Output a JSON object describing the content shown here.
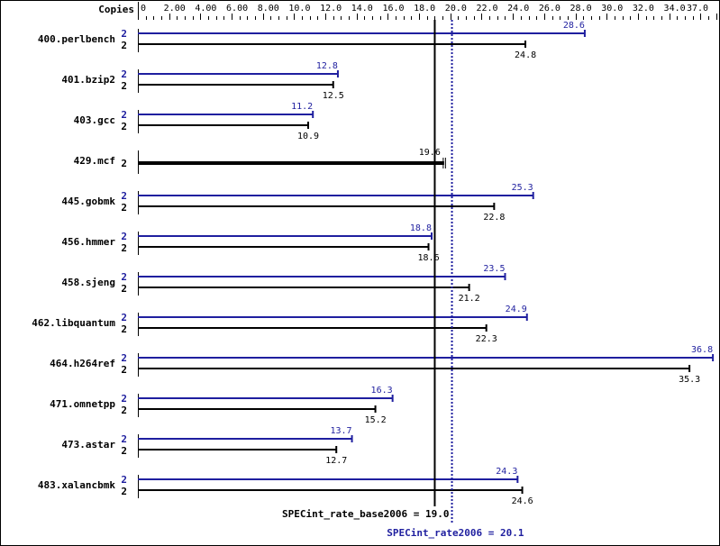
{
  "chart_data": {
    "type": "bar",
    "orientation": "horizontal",
    "title": "",
    "xlabel": "",
    "ylabel": "",
    "copies_header": "Copies",
    "xlim": [
      0,
      37.0
    ],
    "x_ticks": [
      "0",
      "2.00",
      "4.00",
      "6.00",
      "8.00",
      "10.0",
      "12.0",
      "14.0",
      "16.0",
      "18.0",
      "20.0",
      "22.0",
      "24.0",
      "26.0",
      "28.0",
      "30.0",
      "32.0",
      "34.0",
      "37.0"
    ],
    "categories": [
      "400.perlbench",
      "401.bzip2",
      "403.gcc",
      "429.mcf",
      "445.gobmk",
      "456.hmmer",
      "458.sjeng",
      "462.libquantum",
      "464.h264ref",
      "471.omnetpp",
      "473.astar",
      "483.xalancbmk"
    ],
    "series": [
      {
        "name": "SPECint_rate2006 (peak)",
        "color": "#1f1f9f",
        "copies": [
          2,
          2,
          2,
          null,
          2,
          2,
          2,
          2,
          2,
          2,
          2,
          2
        ],
        "values": [
          28.6,
          12.8,
          11.2,
          null,
          25.3,
          18.8,
          23.5,
          24.9,
          36.8,
          16.3,
          13.7,
          24.3
        ]
      },
      {
        "name": "SPECint_rate_base2006 (base)",
        "color": "#000000",
        "copies": [
          2,
          2,
          2,
          2,
          2,
          2,
          2,
          2,
          2,
          2,
          2,
          2
        ],
        "values": [
          24.8,
          12.5,
          10.9,
          19.6,
          22.8,
          18.6,
          21.2,
          22.3,
          35.3,
          15.2,
          12.7,
          24.6
        ]
      }
    ],
    "reference_lines": [
      {
        "label": "SPECint_rate_base2006 = 19.0",
        "value": 19.0,
        "style": "solid",
        "color": "#000000"
      },
      {
        "label": "SPECint_rate2006 = 20.1",
        "value": 20.1,
        "style": "dotted",
        "color": "#1f1f9f"
      }
    ],
    "legend": "none",
    "grid": false
  }
}
